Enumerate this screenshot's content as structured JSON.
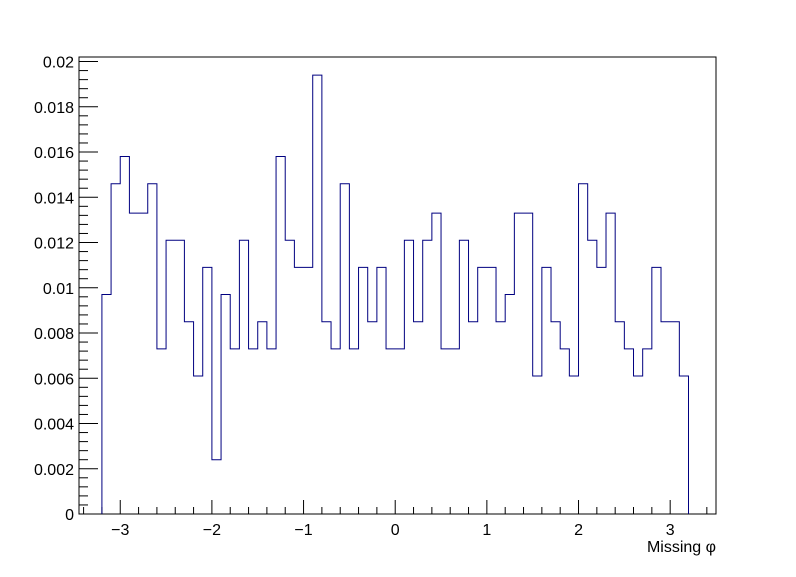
{
  "chart_data": {
    "type": "step",
    "title": "",
    "xlabel": "Missing φ",
    "ylabel": "",
    "xlim": [
      -3.45,
      3.5
    ],
    "ylim": [
      0,
      0.0202
    ],
    "grid": false,
    "line_color": "#000080",
    "x_ticks": [
      -3,
      -2,
      -1,
      0,
      1,
      2,
      3
    ],
    "x_tick_labels": [
      "−3",
      "−2",
      "−1",
      "0",
      "1",
      "2",
      "3"
    ],
    "y_ticks": [
      0,
      0.002,
      0.004,
      0.006,
      0.008,
      0.01,
      0.012,
      0.014,
      0.016,
      0.018,
      0.02
    ],
    "y_tick_labels": [
      "0",
      "0.002",
      "0.004",
      "0.006",
      "0.008",
      "0.01",
      "0.012",
      "0.014",
      "0.016",
      "0.018",
      "0.02"
    ],
    "bin_low": -3.2,
    "bin_width": 0.1,
    "values": [
      0.0097,
      0.0146,
      0.0158,
      0.0133,
      0.0133,
      0.0146,
      0.0073,
      0.0121,
      0.0121,
      0.0085,
      0.0061,
      0.0109,
      0.0024,
      0.0097,
      0.0073,
      0.0121,
      0.0073,
      0.0085,
      0.0073,
      0.0158,
      0.0121,
      0.0109,
      0.0109,
      0.0194,
      0.0085,
      0.0073,
      0.0146,
      0.0073,
      0.0109,
      0.0085,
      0.0109,
      0.0073,
      0.0073,
      0.0121,
      0.0085,
      0.0121,
      0.0133,
      0.0073,
      0.0073,
      0.0121,
      0.0085,
      0.0109,
      0.0109,
      0.0085,
      0.0097,
      0.0133,
      0.0133,
      0.0061,
      0.0109,
      0.0085,
      0.0073,
      0.0061,
      0.0146,
      0.0121,
      0.0109,
      0.0133,
      0.0085,
      0.0073,
      0.0061,
      0.0073,
      0.0109,
      0.0085,
      0.0085,
      0.0061
    ]
  }
}
